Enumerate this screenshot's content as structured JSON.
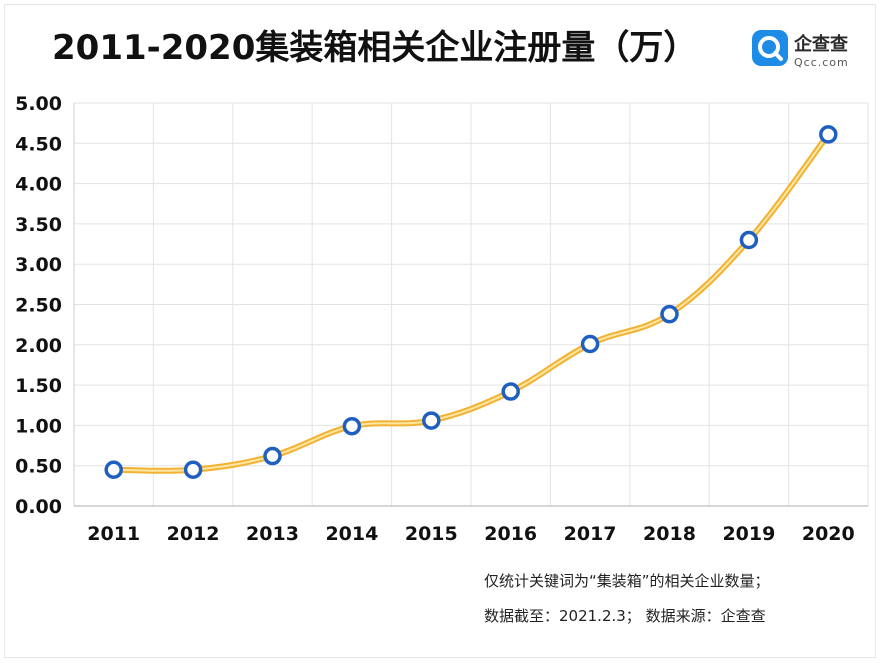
{
  "chart_data": {
    "type": "line",
    "title": "2011-2020集装箱相关企业注册量（万）",
    "categories": [
      "2011",
      "2012",
      "2013",
      "2014",
      "2015",
      "2016",
      "2017",
      "2018",
      "2019",
      "2020"
    ],
    "series": [
      {
        "values": [
          0.45,
          0.45,
          0.62,
          0.99,
          1.06,
          1.42,
          2.01,
          2.38,
          3.3,
          4.61
        ]
      }
    ],
    "ylim": [
      0,
      5
    ],
    "yticks": [
      "0.00",
      "0.50",
      "1.00",
      "1.50",
      "2.00",
      "2.50",
      "3.00",
      "3.50",
      "4.00",
      "4.50",
      "5.00"
    ],
    "xlabel": "",
    "ylabel": "",
    "grid": true,
    "colors": {
      "line": "#f2b233",
      "line_core": "#fbe6a4",
      "marker_stroke": "#1f5fbf",
      "marker_fill": "#ffffff",
      "grid": "#e3e3e3"
    }
  },
  "logo": {
    "name": "企查查",
    "subtext": "Qcc.com",
    "icon": "qcc-logo-icon"
  },
  "notes": [
    "仅统计关键词为“集装箱”的相关企业数量；",
    "数据截至：2021.2.3；  数据来源：企查查"
  ]
}
